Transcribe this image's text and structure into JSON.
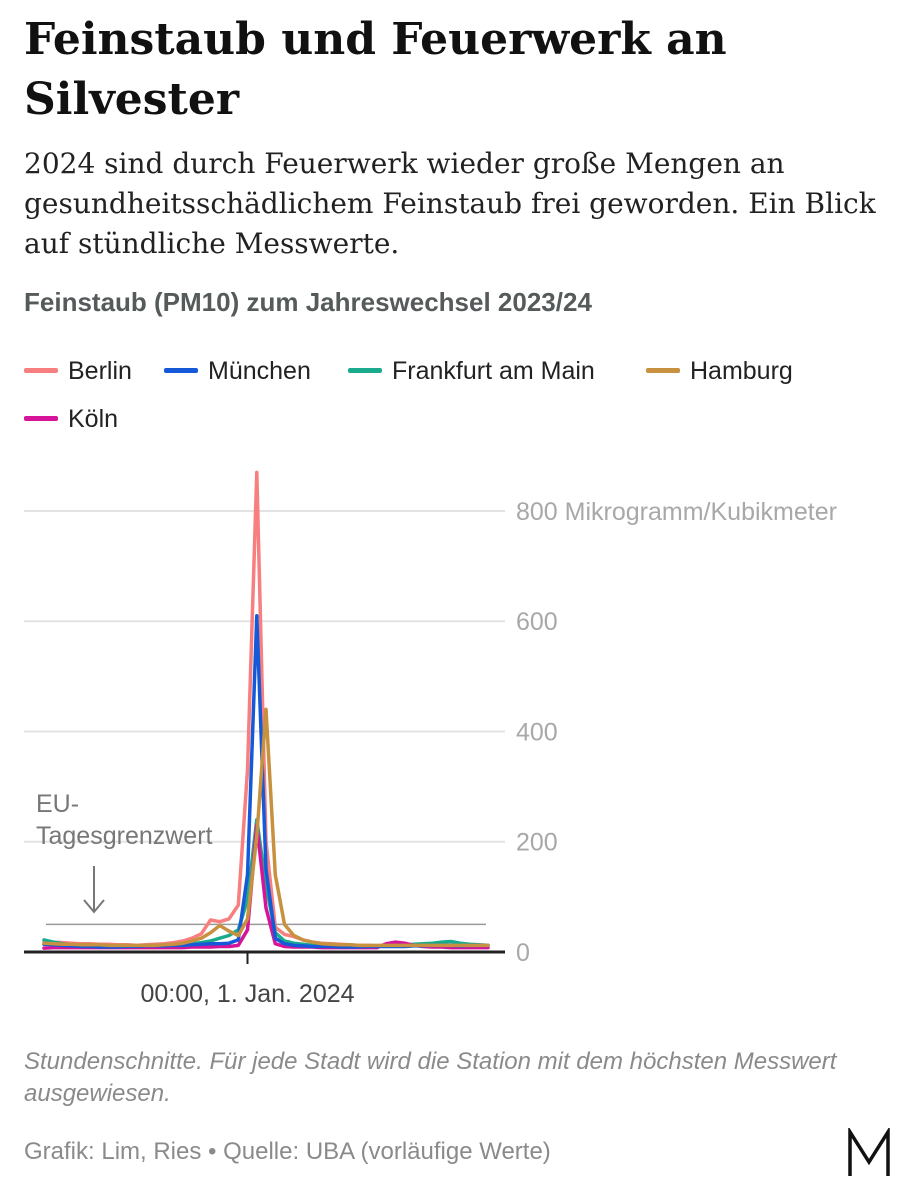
{
  "header": {
    "title": "Feinstaub und Feuerwerk an Silvester",
    "subtitle": "2024 sind durch Feuerwerk wieder große Mengen an gesundheitsschädlichem Feinstaub frei geworden. Ein Blick auf stündliche Messwerte."
  },
  "chart_data": {
    "type": "line",
    "title": "Feinstaub (PM10) zum Jahreswechsel 2023/24",
    "x_tick_label": "00:00, 1. Jan. 2024",
    "y_unit_label": "800 Mikrogramm/Kubikmeter",
    "y_ticks": [
      0,
      200,
      400,
      600,
      800
    ],
    "y_tick_labels": [
      "0",
      "200",
      "400",
      "600",
      "800 Mikrogramm/Kubikmeter"
    ],
    "ylim": [
      0,
      850
    ],
    "grid": "horizontal",
    "legend_position": "top",
    "x_hours_from_midnight": [
      -22,
      -21,
      -20,
      -19,
      -18,
      -17,
      -16,
      -15,
      -14,
      -13,
      -12,
      -11,
      -10,
      -9,
      -8,
      -7,
      -6,
      -5,
      -4,
      -3,
      -2,
      -1,
      0,
      1,
      2,
      3,
      4,
      5,
      6,
      7,
      8,
      9,
      10,
      11,
      12,
      13,
      14,
      15,
      16,
      17,
      18,
      19,
      20,
      21,
      22,
      23,
      24,
      25,
      26
    ],
    "reference_line": {
      "label": "EU-Tagesgrenzwert",
      "value": 50
    },
    "series": [
      {
        "name": "Berlin",
        "color": "#f77f7f",
        "values": [
          20,
          18,
          17,
          16,
          15,
          15,
          14,
          14,
          13,
          13,
          12,
          13,
          14,
          15,
          17,
          20,
          25,
          33,
          58,
          55,
          60,
          85,
          330,
          870,
          200,
          45,
          32,
          28,
          22,
          18,
          16,
          15,
          14,
          13,
          12,
          12,
          11,
          11,
          12,
          12,
          13,
          12,
          12,
          11,
          11,
          11,
          12,
          12,
          12
        ]
      },
      {
        "name": "München",
        "color": "#1559d9",
        "values": [
          14,
          13,
          12,
          11,
          10,
          10,
          9,
          9,
          9,
          10,
          10,
          11,
          11,
          11,
          12,
          12,
          13,
          14,
          15,
          15,
          16,
          22,
          140,
          610,
          150,
          25,
          15,
          12,
          11,
          10,
          10,
          10,
          9,
          9,
          9,
          10,
          10,
          10,
          10,
          10,
          11,
          11,
          12,
          12,
          12,
          11,
          12,
          12,
          12
        ]
      },
      {
        "name": "Frankfurt am Main",
        "color": "#1aab8f",
        "values": [
          22,
          18,
          15,
          13,
          12,
          12,
          11,
          11,
          11,
          11,
          11,
          11,
          12,
          12,
          12,
          13,
          15,
          17,
          20,
          25,
          30,
          40,
          95,
          240,
          120,
          35,
          20,
          16,
          14,
          12,
          11,
          11,
          11,
          11,
          11,
          11,
          11,
          12,
          12,
          13,
          14,
          15,
          16,
          18,
          19,
          16,
          14,
          13,
          12
        ]
      },
      {
        "name": "Hamburg",
        "color": "#c8913f",
        "values": [
          16,
          15,
          14,
          14,
          13,
          13,
          13,
          12,
          12,
          12,
          12,
          12,
          12,
          13,
          14,
          16,
          20,
          25,
          35,
          48,
          38,
          30,
          60,
          210,
          440,
          140,
          50,
          30,
          22,
          18,
          15,
          14,
          13,
          13,
          12,
          12,
          12,
          12,
          12,
          12,
          12,
          12,
          12,
          12,
          12,
          12,
          12,
          12,
          12
        ]
      },
      {
        "name": "Köln",
        "color": "#d6149a",
        "values": [
          7,
          8,
          8,
          8,
          8,
          8,
          8,
          8,
          8,
          8,
          8,
          8,
          8,
          8,
          8,
          8,
          9,
          9,
          9,
          10,
          10,
          12,
          40,
          230,
          80,
          15,
          10,
          9,
          9,
          9,
          8,
          8,
          8,
          8,
          8,
          8,
          8,
          15,
          18,
          16,
          12,
          10,
          9,
          9,
          8,
          8,
          8,
          8,
          8
        ]
      }
    ]
  },
  "footer": {
    "note": "Stundenschnitte. Für jede Stadt wird die Station mit dem höchsten Messwert ausgewiesen.",
    "credit": "Grafik: Lim, Ries • Quelle: UBA (vorläufige Werte)",
    "logo": "M"
  }
}
